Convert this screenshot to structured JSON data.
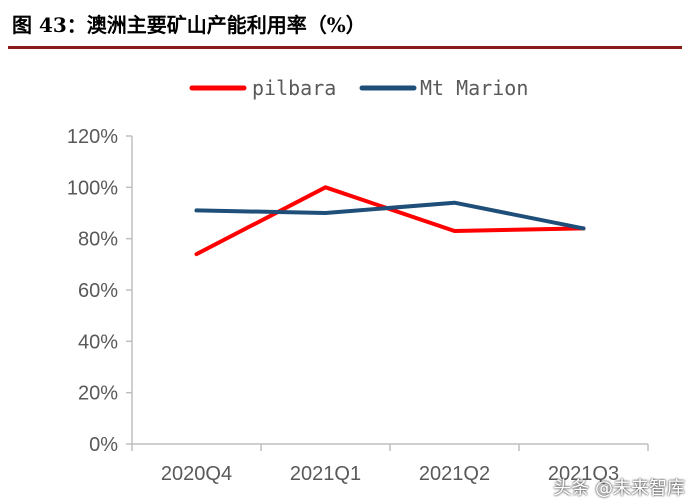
{
  "figure": {
    "title": "图 43：澳洲主要矿山产能利用率（%）",
    "watermark": "头条 @未来智库"
  },
  "chart_data": {
    "type": "line",
    "categories": [
      "2020Q4",
      "2021Q1",
      "2021Q2",
      "2021Q3"
    ],
    "series": [
      {
        "name": "pilbara",
        "values": [
          74,
          100,
          83,
          84
        ],
        "color": "#ff0000"
      },
      {
        "name": "Mt Marion",
        "values": [
          91,
          90,
          94,
          84
        ],
        "color": "#1f4e79"
      }
    ],
    "y_ticks": [
      "0%",
      "20%",
      "40%",
      "60%",
      "80%",
      "100%",
      "120%"
    ],
    "ylim": [
      0,
      120
    ],
    "legend_position": "top",
    "grid": false
  }
}
